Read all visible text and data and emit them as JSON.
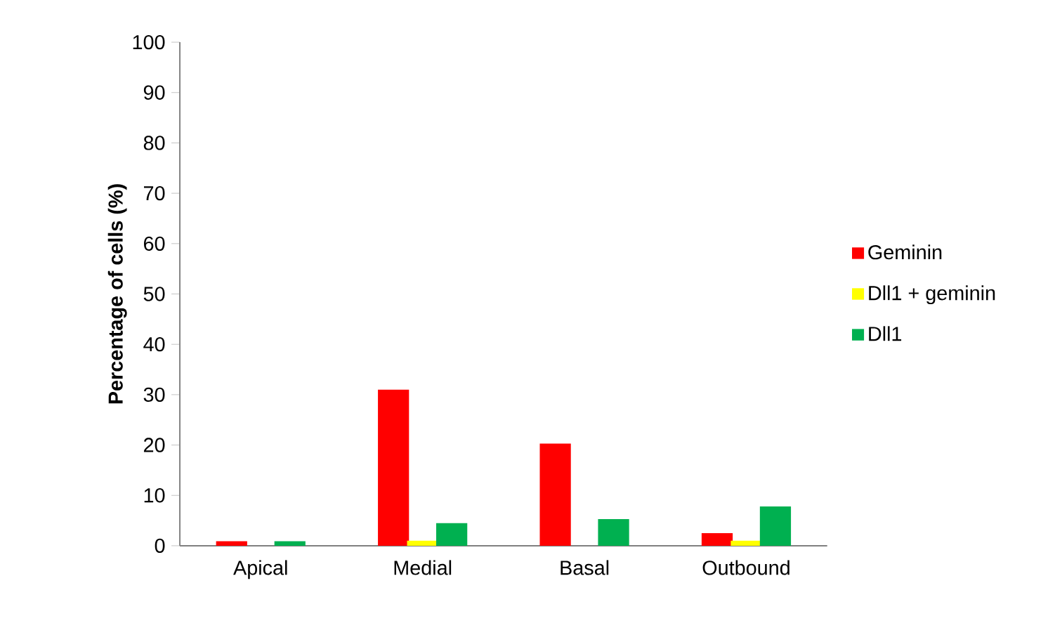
{
  "chart_data": {
    "type": "bar",
    "ylabel": "Percentage of cells (%)",
    "categories": [
      "Apical",
      "Medial",
      "Basal",
      "Outbound"
    ],
    "series": [
      {
        "name": "Geminin",
        "color": "#ff0000",
        "values": [
          0.9,
          31,
          20.3,
          2.5
        ]
      },
      {
        "name": "Dll1 + geminin",
        "color": "#ffff00",
        "values": [
          0,
          1,
          0,
          1
        ]
      },
      {
        "name": "Dll1",
        "color": "#00b050",
        "values": [
          0.9,
          4.5,
          5.3,
          7.8
        ]
      }
    ],
    "ylim": [
      0,
      100
    ],
    "yticks": [
      0,
      10,
      20,
      30,
      40,
      50,
      60,
      70,
      80,
      90,
      100
    ],
    "grid": false,
    "legend": "right"
  }
}
